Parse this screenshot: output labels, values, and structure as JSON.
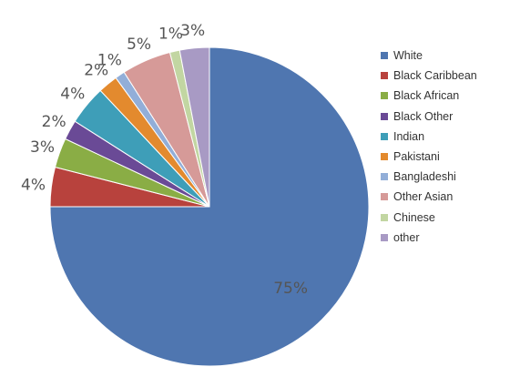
{
  "chart_data": {
    "type": "pie",
    "start_angle_deg": 0,
    "direction": "clockwise",
    "largest_slice_label": "75%",
    "slices": [
      {
        "name": "White",
        "value": 75,
        "label": "75%",
        "color": "#4f76b0"
      },
      {
        "name": "Black Caribbean",
        "value": 4,
        "label": "4%",
        "color": "#b8423d"
      },
      {
        "name": "Black African",
        "value": 3,
        "label": "3%",
        "color": "#8aad45"
      },
      {
        "name": "Black Other",
        "value": 2,
        "label": "2%",
        "color": "#6a4a96"
      },
      {
        "name": "Indian",
        "value": 4,
        "label": "4%",
        "color": "#3e9eb8"
      },
      {
        "name": "Pakistani",
        "value": 2,
        "label": "2%",
        "color": "#e38a2e"
      },
      {
        "name": "Bangladeshi",
        "value": 1,
        "label": "1%",
        "color": "#92aed8"
      },
      {
        "name": "Other Asian",
        "value": 5,
        "label": "5%",
        "color": "#d69a98"
      },
      {
        "name": "Chinese",
        "value": 1,
        "label": "1%",
        "color": "#c2d6a2"
      },
      {
        "name": "other",
        "value": 3,
        "label": "3%",
        "color": "#a89ac4"
      }
    ],
    "legend_position": "right"
  }
}
